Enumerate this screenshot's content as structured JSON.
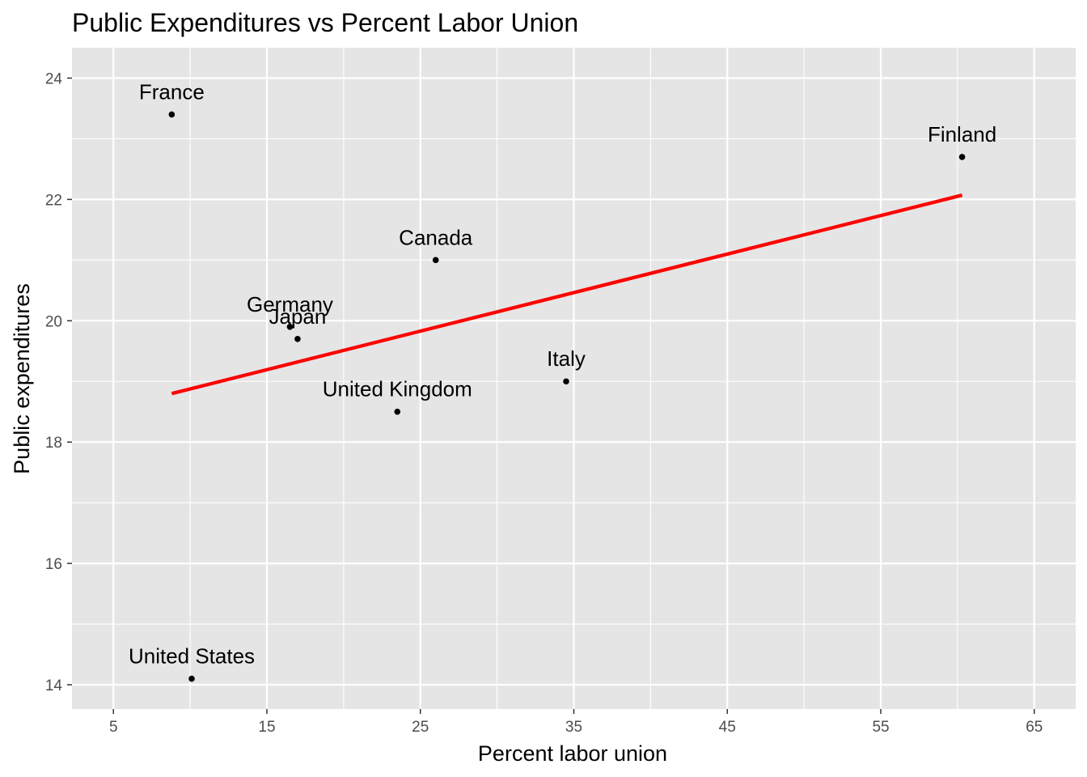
{
  "chart_data": {
    "type": "scatter",
    "title": "Public Expenditures vs Percent Labor Union",
    "xlabel": "Percent labor union",
    "ylabel": "Public expenditures",
    "xlim": [
      2.3,
      67.7
    ],
    "ylim": [
      13.6,
      24.5
    ],
    "x_ticks": [
      5,
      15,
      25,
      35,
      45,
      55,
      65
    ],
    "x_tick_labels": [
      "5",
      "15",
      "25",
      "35",
      "45",
      "55",
      "65"
    ],
    "y_ticks": [
      14,
      16,
      18,
      20,
      22,
      24
    ],
    "y_tick_labels": [
      "14",
      "16",
      "18",
      "20",
      "22",
      "24"
    ],
    "grid": true,
    "legend": "none",
    "points": [
      {
        "label": "France",
        "x": 8.8,
        "y": 23.4
      },
      {
        "label": "Finland",
        "x": 60.3,
        "y": 22.7
      },
      {
        "label": "Canada",
        "x": 26.0,
        "y": 21.0
      },
      {
        "label": "Germany",
        "x": 16.5,
        "y": 19.9
      },
      {
        "label": "Japan",
        "x": 17.0,
        "y": 19.7
      },
      {
        "label": "Italy",
        "x": 34.5,
        "y": 19.0
      },
      {
        "label": "United Kingdom",
        "x": 23.5,
        "y": 18.5
      },
      {
        "label": "United States",
        "x": 10.1,
        "y": 14.1
      }
    ],
    "fit_line": {
      "x": [
        8.8,
        60.3
      ],
      "y": [
        18.8,
        22.07
      ]
    },
    "colors": {
      "panel": "#e5e5e5",
      "grid": "#ffffff",
      "point": "#000000",
      "fit_line": "#ff0000",
      "tick_label": "#4d4d4d",
      "tick_mark": "#333333"
    }
  }
}
